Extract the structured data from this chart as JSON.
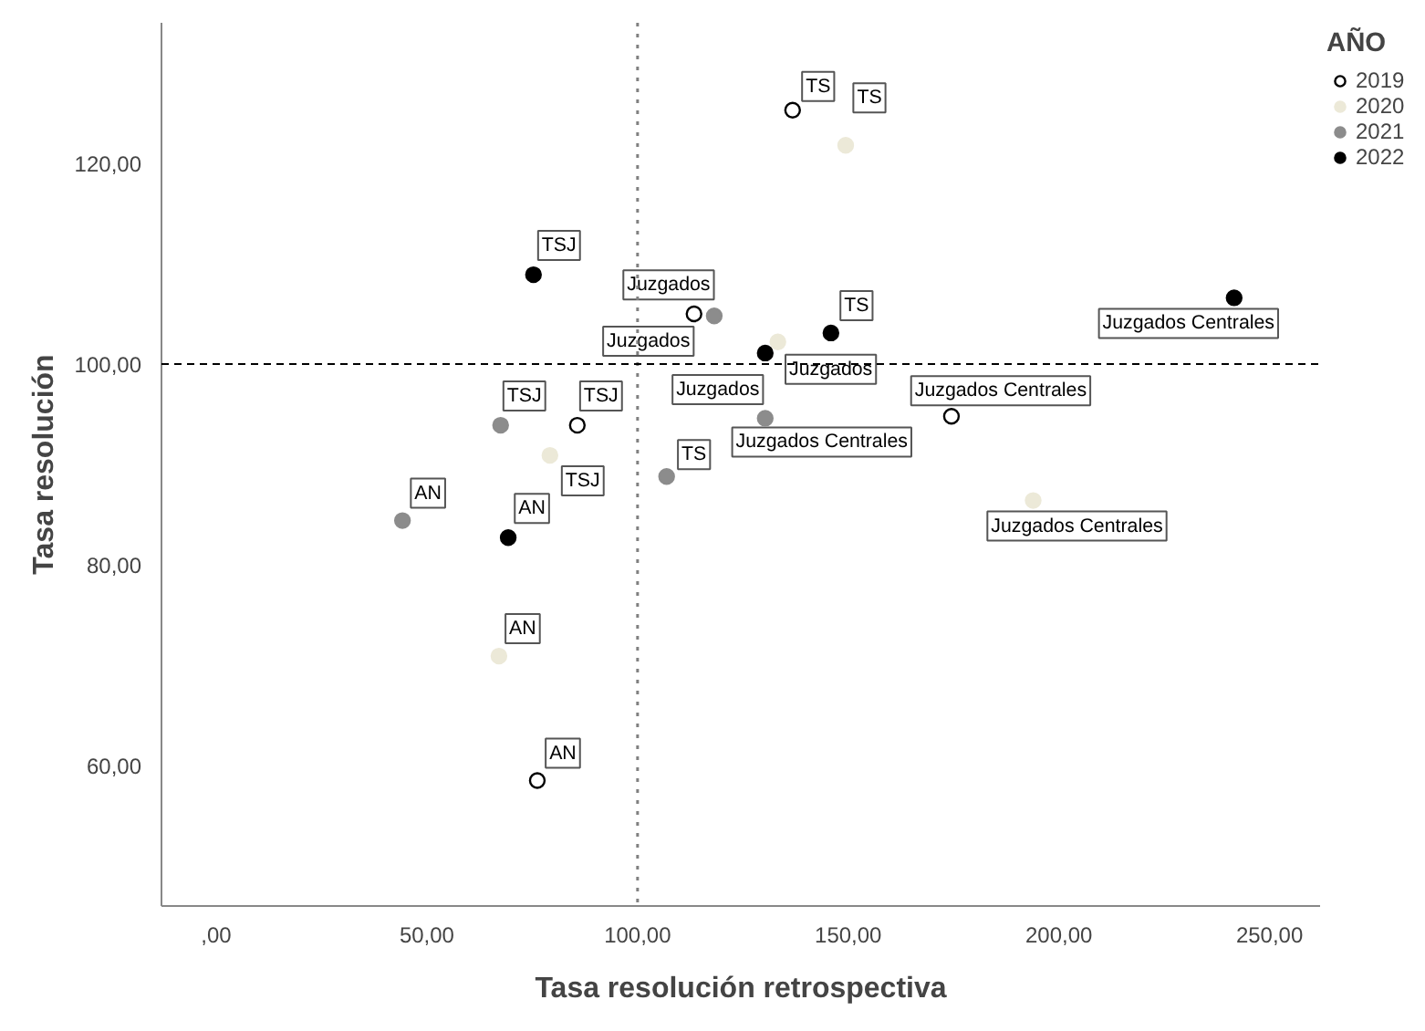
{
  "chart_data": {
    "type": "scatter",
    "xlabel": "Tasa resolución retrospectiva",
    "ylabel": "Tasa resolución",
    "legend_title": "AÑO",
    "legend": "right",
    "marker": "circle",
    "grid": false,
    "xlim": [
      -13,
      262
    ],
    "ylim": [
      46,
      134
    ],
    "xticks": [
      {
        "value": 0,
        "label": ",00"
      },
      {
        "value": 50,
        "label": "50,00"
      },
      {
        "value": 100,
        "label": "100,00"
      },
      {
        "value": 150,
        "label": "150,00"
      },
      {
        "value": 200,
        "label": "200,00"
      },
      {
        "value": 250,
        "label": "250,00"
      }
    ],
    "yticks": [
      {
        "value": 60,
        "label": "60,00"
      },
      {
        "value": 80,
        "label": "80,00"
      },
      {
        "value": 100,
        "label": "100,00"
      },
      {
        "value": 120,
        "label": "120,00"
      }
    ],
    "series": [
      {
        "name": "2019",
        "color": "#ffffff",
        "x": [
          136.8,
          113.4,
          174.5,
          85.7,
          76.2
        ],
        "values": [
          125.3,
          105.0,
          94.8,
          93.9,
          58.5
        ]
      },
      {
        "name": "2020",
        "color": "#ece9d8",
        "x": [
          149.4,
          133.3,
          193.9,
          79.2,
          67.1
        ],
        "values": [
          121.8,
          102.2,
          86.4,
          90.9,
          70.9
        ]
      },
      {
        "name": "2021",
        "color": "#8c8c8c",
        "x": [
          118.2,
          130.3,
          106.9,
          67.5,
          44.2
        ],
        "values": [
          104.8,
          94.6,
          88.8,
          93.9,
          84.4
        ]
      },
      {
        "name": "2022",
        "color": "#000000",
        "x": [
          75.3,
          130.3,
          145.9,
          241.6,
          69.3
        ],
        "values": [
          108.9,
          101.1,
          103.1,
          106.6,
          82.7
        ]
      }
    ],
    "ref_lines": [
      {
        "axis": "x",
        "value": 100,
        "line_style": "dotted",
        "color": "#808080"
      },
      {
        "axis": "y",
        "value": 100,
        "line_style": "dashed",
        "color": "#000000"
      }
    ],
    "annotations": [
      {
        "text": "TS",
        "x": 136.8,
        "y": 125.3
      },
      {
        "text": "Juzgados",
        "x": 113.4,
        "y": 105.0
      },
      {
        "text": "Juzgados Centrales",
        "x": 174.5,
        "y": 94.8
      },
      {
        "text": "TSJ",
        "x": 85.7,
        "y": 93.9
      },
      {
        "text": "AN",
        "x": 76.2,
        "y": 58.5
      },
      {
        "text": "TS",
        "x": 149.4,
        "y": 121.8
      },
      {
        "text": "Juzgados",
        "x": 133.3,
        "y": 102.2
      },
      {
        "text": "Juzgados Centrales",
        "x": 193.9,
        "y": 86.4
      },
      {
        "text": "TSJ",
        "x": 79.2,
        "y": 90.9
      },
      {
        "text": "AN",
        "x": 67.1,
        "y": 70.9
      },
      {
        "text": "Juzgados",
        "x": 118.2,
        "y": 104.8
      },
      {
        "text": "Juzgados Centrales",
        "x": 130.3,
        "y": 94.6
      },
      {
        "text": "TS",
        "x": 106.9,
        "y": 88.8
      },
      {
        "text": "TSJ",
        "x": 67.5,
        "y": 93.9
      },
      {
        "text": "AN",
        "x": 44.2,
        "y": 84.4
      },
      {
        "text": "TSJ",
        "x": 75.3,
        "y": 108.9
      },
      {
        "text": "Juzgados",
        "x": 130.3,
        "y": 101.1
      },
      {
        "text": "TS",
        "x": 145.9,
        "y": 103.1
      },
      {
        "text": "Juzgados Centrales",
        "x": 241.6,
        "y": 106.6
      },
      {
        "text": "AN",
        "x": 69.3,
        "y": 82.7
      }
    ]
  }
}
